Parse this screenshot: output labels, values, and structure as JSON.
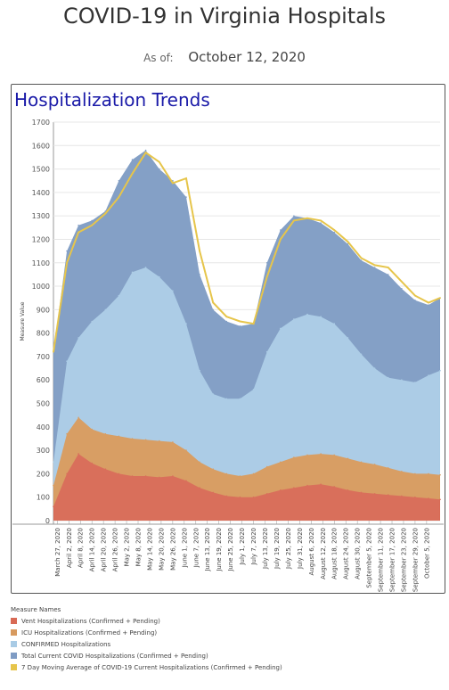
{
  "header": {
    "title": "COVID-19 in Virginia Hospitals",
    "as_of_label": "As of:",
    "as_of_date": "October 12, 2020"
  },
  "panel": {
    "title": "Hospitalization Trends"
  },
  "colors": {
    "vent": "#d86a55",
    "icu": "#d79a5f",
    "confirmed": "#a9cbe5",
    "total": "#7f9cc4",
    "avg": "#e6c54b"
  },
  "chart_data": {
    "type": "area",
    "title": "Hospitalization Trends",
    "ylabel": "Measure Value",
    "ylim": [
      0,
      1700
    ],
    "yticks": [
      0,
      100,
      200,
      300,
      400,
      500,
      600,
      700,
      800,
      900,
      1000,
      1100,
      1200,
      1300,
      1400,
      1500,
      1600,
      1700
    ],
    "xlim": [
      "2020-03-25",
      "2020-10-12"
    ],
    "xticks": [
      "March 27, 2020",
      "April 2, 2020",
      "April 8, 2020",
      "April 14, 2020",
      "April 20, 2020",
      "April 26, 2020",
      "May 2, 2020",
      "May 8, 2020",
      "May 14, 2020",
      "May 20, 2020",
      "May 26, 2020",
      "June 1, 2020",
      "June 7, 2020",
      "June 13, 2020",
      "June 19, 2020",
      "June 25, 2020",
      "July 1, 2020",
      "July 7, 2020",
      "July 13, 2020",
      "July 19, 2020",
      "July 25, 2020",
      "July 31, 2020",
      "August 6, 2020",
      "August 12, 2020",
      "August 18, 2020",
      "August 24, 2020",
      "August 30, 2020",
      "September 5, 2020",
      "September 11, 2020",
      "September 17, 2020",
      "September 23, 2020",
      "September 29, 2020",
      "October 5, 2020"
    ],
    "legend_title": "Measure Names",
    "legend_position": "bottom",
    "grid": true,
    "series": [
      {
        "name": "Vent Hospitalizations (Confirmed + Pending)",
        "key": "vent",
        "dates": [
          "2020-03-25",
          "2020-04-01",
          "2020-04-07",
          "2020-04-14",
          "2020-04-21",
          "2020-04-28",
          "2020-05-05",
          "2020-05-12",
          "2020-05-19",
          "2020-05-26",
          "2020-06-02",
          "2020-06-09",
          "2020-06-16",
          "2020-06-23",
          "2020-06-30",
          "2020-07-07",
          "2020-07-14",
          "2020-07-21",
          "2020-07-28",
          "2020-08-04",
          "2020-08-11",
          "2020-08-18",
          "2020-08-25",
          "2020-09-01",
          "2020-09-08",
          "2020-09-15",
          "2020-09-22",
          "2020-09-29",
          "2020-10-06",
          "2020-10-12"
        ],
        "values": [
          60,
          200,
          285,
          245,
          220,
          200,
          190,
          190,
          185,
          190,
          170,
          140,
          120,
          105,
          100,
          100,
          115,
          130,
          140,
          150,
          155,
          145,
          130,
          120,
          115,
          110,
          105,
          100,
          95,
          90
        ]
      },
      {
        "name": "ICU Hospitalizations (Confirmed + Pending)",
        "key": "icu",
        "dates": [
          "2020-03-25",
          "2020-04-01",
          "2020-04-07",
          "2020-04-14",
          "2020-04-21",
          "2020-04-28",
          "2020-05-05",
          "2020-05-12",
          "2020-05-19",
          "2020-05-26",
          "2020-06-02",
          "2020-06-09",
          "2020-06-16",
          "2020-06-23",
          "2020-06-30",
          "2020-07-07",
          "2020-07-14",
          "2020-07-21",
          "2020-07-28",
          "2020-08-04",
          "2020-08-11",
          "2020-08-18",
          "2020-08-25",
          "2020-09-01",
          "2020-09-08",
          "2020-09-15",
          "2020-09-22",
          "2020-09-29",
          "2020-10-06",
          "2020-10-12"
        ],
        "values": [
          150,
          370,
          440,
          390,
          370,
          360,
          350,
          345,
          340,
          335,
          300,
          250,
          220,
          200,
          190,
          200,
          230,
          250,
          270,
          280,
          285,
          280,
          265,
          250,
          240,
          225,
          210,
          200,
          200,
          195
        ]
      },
      {
        "name": "CONFIRMED Hospitalizations",
        "key": "confirmed",
        "dates": [
          "2020-03-25",
          "2020-04-01",
          "2020-04-07",
          "2020-04-14",
          "2020-04-21",
          "2020-04-28",
          "2020-05-05",
          "2020-05-12",
          "2020-05-19",
          "2020-05-26",
          "2020-06-02",
          "2020-06-09",
          "2020-06-16",
          "2020-06-23",
          "2020-06-30",
          "2020-07-07",
          "2020-07-14",
          "2020-07-21",
          "2020-07-28",
          "2020-08-04",
          "2020-08-11",
          "2020-08-18",
          "2020-08-25",
          "2020-09-01",
          "2020-09-08",
          "2020-09-15",
          "2020-09-22",
          "2020-09-29",
          "2020-10-06",
          "2020-10-12"
        ],
        "values": [
          250,
          680,
          780,
          850,
          900,
          960,
          1060,
          1080,
          1040,
          980,
          840,
          640,
          540,
          520,
          520,
          560,
          720,
          820,
          860,
          880,
          870,
          840,
          780,
          710,
          650,
          610,
          600,
          590,
          620,
          640
        ]
      },
      {
        "name": "Total Current COVID Hospitalizations (Confirmed + Pending)",
        "key": "total",
        "dates": [
          "2020-03-25",
          "2020-04-01",
          "2020-04-07",
          "2020-04-14",
          "2020-04-21",
          "2020-04-28",
          "2020-05-05",
          "2020-05-12",
          "2020-05-19",
          "2020-05-26",
          "2020-06-02",
          "2020-06-09",
          "2020-06-16",
          "2020-06-23",
          "2020-06-30",
          "2020-07-07",
          "2020-07-14",
          "2020-07-21",
          "2020-07-28",
          "2020-08-04",
          "2020-08-11",
          "2020-08-18",
          "2020-08-25",
          "2020-09-01",
          "2020-09-08",
          "2020-09-15",
          "2020-09-22",
          "2020-09-29",
          "2020-10-06",
          "2020-10-12"
        ],
        "values": [
          720,
          1150,
          1260,
          1280,
          1320,
          1450,
          1540,
          1580,
          1500,
          1450,
          1380,
          1050,
          900,
          850,
          830,
          840,
          1100,
          1240,
          1300,
          1290,
          1270,
          1230,
          1180,
          1110,
          1080,
          1050,
          990,
          940,
          920,
          950
        ]
      },
      {
        "name": "7 Day Moving Average of COVID-19 Current Hospitalizations (Confirmed + Pending)",
        "key": "avg",
        "dates": [
          "2020-03-25",
          "2020-04-01",
          "2020-04-07",
          "2020-04-14",
          "2020-04-21",
          "2020-04-28",
          "2020-05-05",
          "2020-05-12",
          "2020-05-19",
          "2020-05-26",
          "2020-06-02",
          "2020-06-09",
          "2020-06-16",
          "2020-06-23",
          "2020-06-30",
          "2020-07-07",
          "2020-07-14",
          "2020-07-21",
          "2020-07-28",
          "2020-08-04",
          "2020-08-11",
          "2020-08-18",
          "2020-08-25",
          "2020-09-01",
          "2020-09-08",
          "2020-09-15",
          "2020-09-22",
          "2020-09-29",
          "2020-10-06",
          "2020-10-12"
        ],
        "values": [
          720,
          1100,
          1230,
          1260,
          1310,
          1380,
          1480,
          1570,
          1530,
          1440,
          1460,
          1150,
          930,
          870,
          850,
          840,
          1040,
          1200,
          1280,
          1290,
          1280,
          1240,
          1190,
          1120,
          1090,
          1080,
          1020,
          960,
          930,
          950
        ]
      }
    ]
  }
}
